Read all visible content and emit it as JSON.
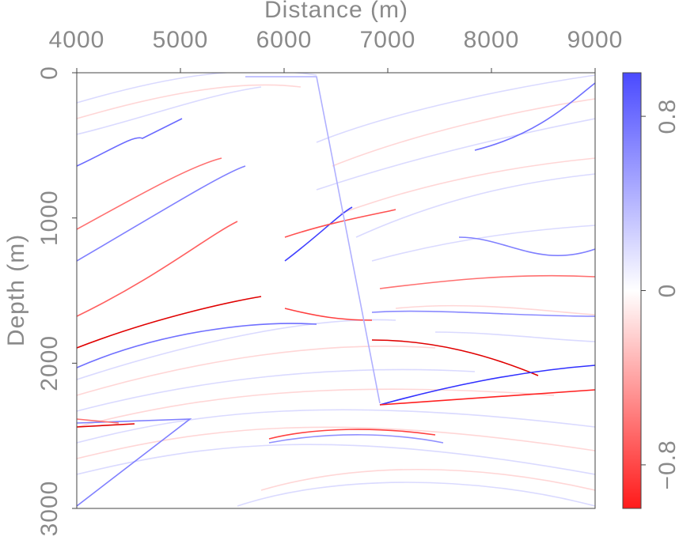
{
  "chart_data": {
    "type": "image",
    "xlabel": "Distance (m)",
    "ylabel": "Depth (m)",
    "xlim": [
      4000,
      9000
    ],
    "xticks": [
      4000,
      5000,
      6000,
      7000,
      8000,
      9000
    ],
    "ylim": [
      3000,
      0
    ],
    "yticks": [
      0,
      1000,
      2000,
      3000
    ],
    "colorbar": {
      "lim": [
        -1,
        1
      ],
      "ticks": [
        {
          "value": -0.8,
          "label": "−0.8"
        },
        0,
        0.8
      ],
      "colors": [
        "#ff1a1a",
        "#ffffff",
        "#4a4aff"
      ]
    }
  }
}
